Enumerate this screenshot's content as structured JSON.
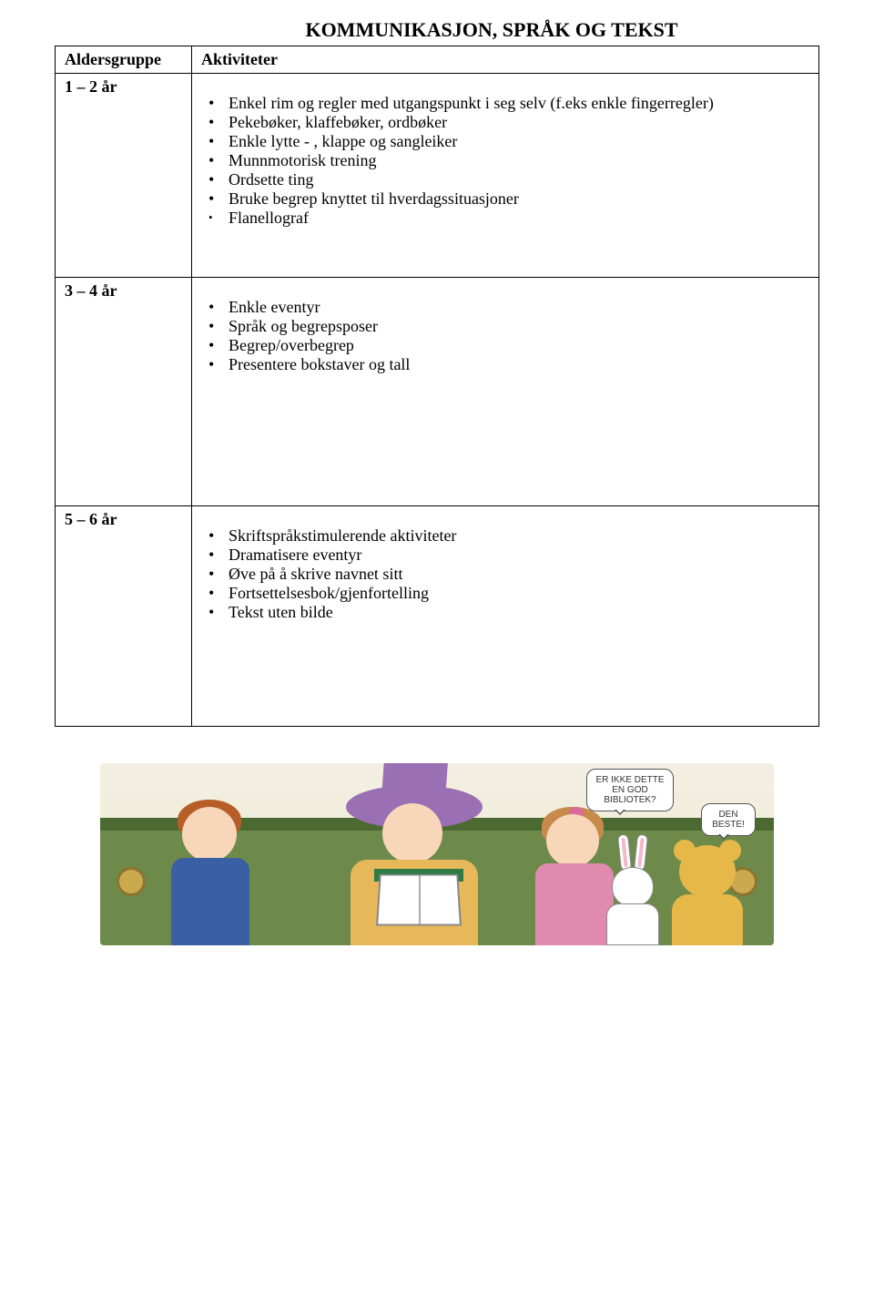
{
  "title": "KOMMUNIKASJON, SPRÅK OG TEKST",
  "columns": {
    "age": "Aldersgruppe",
    "activities": "Aktiviteter"
  },
  "rows": [
    {
      "age": "1 – 2 år",
      "bullets": [
        "Enkel rim og regler med utgangspunkt i seg selv (f.eks enkle fingerregler)",
        "Pekebøker, klaffebøker, ordbøker",
        "Enkle lytte - , klappe og sangleiker",
        "Munnmotorisk trening",
        "Ordsette ting",
        "Bruke begrep knyttet til hverdagssituasjoner"
      ],
      "sub_bullets": [
        "Flanellograf"
      ]
    },
    {
      "age": "3 – 4 år",
      "bullets": [
        "Enkle eventyr",
        "Språk og begrepsposer",
        "Begrep/overbegrep",
        "Presentere bokstaver og tall"
      ]
    },
    {
      "age": "5 – 6 år",
      "bullets": [
        "Skriftspråkstimulerende aktiviteter",
        "Dramatisere eventyr",
        "Øve på å skrive navnet sitt",
        "Fortsettelsesbok/gjenfortelling",
        "Tekst uten bilde"
      ]
    }
  ],
  "illustration": {
    "speech1": "ER IKKE DETTE EN GOD BIBLIOTEK?",
    "speech2": "DEN BESTE!",
    "colors": {
      "background": "#f2efe2",
      "couch": "#6e8a4a",
      "couch_trim": "#4a6a32",
      "button": "#caa94f",
      "boy_hair": "#b65d28",
      "boy_shirt": "#3a5fa4",
      "skin": "#f7d6b9",
      "hat": "#9a6fb3",
      "woman_top": "#e6b85a",
      "girl_hair": "#c78a4a",
      "girl_dress": "#e08aae",
      "girl_bow": "#d96a9b",
      "bunny": "#ffffff",
      "bunny_ear_inner": "#f3b8c8",
      "bear": "#e6b84a",
      "book_cover": "#2f7a45"
    }
  }
}
